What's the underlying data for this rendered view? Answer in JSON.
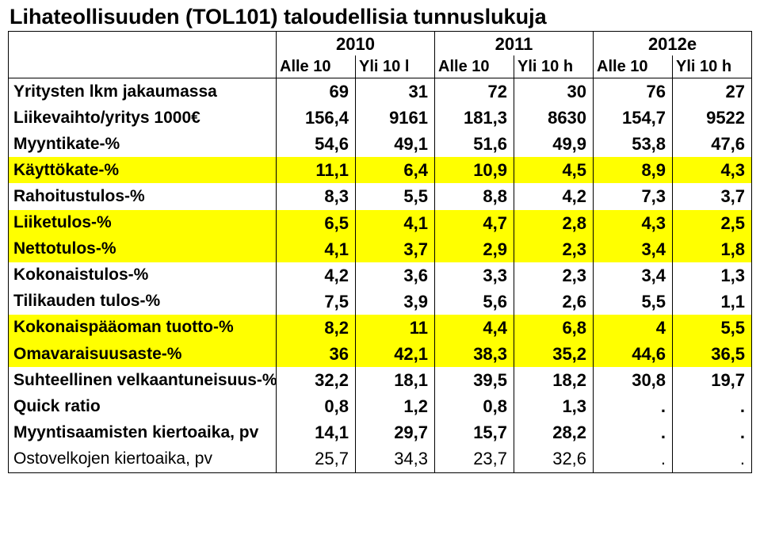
{
  "title": "Lihateollisuuden (TOL101) taloudellisia tunnuslukuja",
  "years": [
    "2010",
    "2011",
    "2012e"
  ],
  "sub_headers": [
    "Alle 10",
    "Yli 10 l",
    "Alle 10",
    "Yli 10 h",
    "Alle 10",
    "Yli 10 h"
  ],
  "highlight_color": "#ffff00",
  "background_color": "#ffffff",
  "border_color": "#000000",
  "text_color": "#000000",
  "title_fontsize": 27,
  "cell_fontsize": 22,
  "rows": [
    {
      "label": "Yritysten lkm jakaumassa",
      "values": [
        "69",
        "31",
        "72",
        "30",
        "76",
        "27"
      ],
      "highlight": false,
      "light": false
    },
    {
      "label": "Liikevaihto/yritys 1000€",
      "values": [
        "156,4",
        "9161",
        "181,3",
        "8630",
        "154,7",
        "9522"
      ],
      "highlight": false,
      "light": false
    },
    {
      "label": "Myyntikate-%",
      "values": [
        "54,6",
        "49,1",
        "51,6",
        "49,9",
        "53,8",
        "47,6"
      ],
      "highlight": false,
      "light": false
    },
    {
      "label": "Käyttökate-%",
      "values": [
        "11,1",
        "6,4",
        "10,9",
        "4,5",
        "8,9",
        "4,3"
      ],
      "highlight": true,
      "light": false
    },
    {
      "label": "Rahoitustulos-%",
      "values": [
        "8,3",
        "5,5",
        "8,8",
        "4,2",
        "7,3",
        "3,7"
      ],
      "highlight": false,
      "light": false
    },
    {
      "label": "Liiketulos-%",
      "values": [
        "6,5",
        "4,1",
        "4,7",
        "2,8",
        "4,3",
        "2,5"
      ],
      "highlight": true,
      "light": false
    },
    {
      "label": "Nettotulos-%",
      "values": [
        "4,1",
        "3,7",
        "2,9",
        "2,3",
        "3,4",
        "1,8"
      ],
      "highlight": true,
      "light": false
    },
    {
      "label": "Kokonaistulos-%",
      "values": [
        "4,2",
        "3,6",
        "3,3",
        "2,3",
        "3,4",
        "1,3"
      ],
      "highlight": false,
      "light": false
    },
    {
      "label": "Tilikauden tulos-%",
      "values": [
        "7,5",
        "3,9",
        "5,6",
        "2,6",
        "5,5",
        "1,1"
      ],
      "highlight": false,
      "light": false
    },
    {
      "label": "Kokonaispääoman tuotto-%",
      "values": [
        "8,2",
        "11",
        "4,4",
        "6,8",
        "4",
        "5,5"
      ],
      "highlight": true,
      "light": false
    },
    {
      "label": "Omavaraisuusaste-%",
      "values": [
        "36",
        "42,1",
        "38,3",
        "35,2",
        "44,6",
        "36,5"
      ],
      "highlight": true,
      "light": false
    },
    {
      "label": "Suhteellinen velkaantuneisuus-%",
      "values": [
        "32,2",
        "18,1",
        "39,5",
        "18,2",
        "30,8",
        "19,7"
      ],
      "highlight": false,
      "light": false
    },
    {
      "label": "Quick ratio",
      "values": [
        "0,8",
        "1,2",
        "0,8",
        "1,3",
        ".",
        "."
      ],
      "highlight": false,
      "light": false
    },
    {
      "label": "Myyntisaamisten kiertoaika, pv",
      "values": [
        "14,1",
        "29,7",
        "15,7",
        "28,2",
        ".",
        "."
      ],
      "highlight": false,
      "light": false
    },
    {
      "label": "Ostovelkojen kiertoaika, pv",
      "values": [
        "25,7",
        "34,3",
        "23,7",
        "32,6",
        ".",
        "."
      ],
      "highlight": false,
      "light": true
    }
  ]
}
